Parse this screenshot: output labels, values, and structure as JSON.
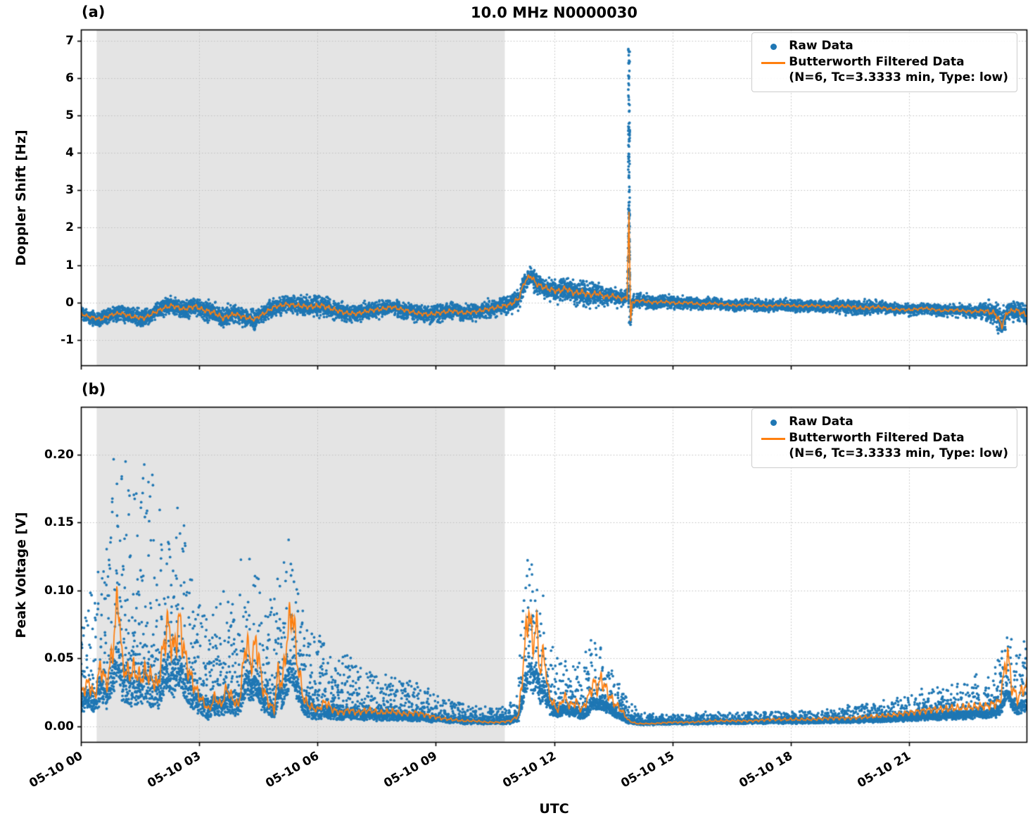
{
  "chart": {
    "title": "10.0 MHz N0000030",
    "xlabel": "UTC"
  },
  "panels": {
    "a": {
      "label": "(a)",
      "ylabel": "Doppler Shift [Hz]"
    },
    "b": {
      "label": "(b)",
      "ylabel": "Peak Voltage [V]"
    }
  },
  "legend": {
    "raw": "Raw Data",
    "filtered_line1": "Butterworth Filtered Data",
    "filtered_line2": "(N=6, Tc=3.3333 min, Type: low)"
  },
  "colors": {
    "raw": "#1f77b4",
    "filtered": "#ff7f0e",
    "shaded": "#e4e4e4",
    "grid": "#c0c0c0",
    "spine": "#000000"
  },
  "chart_data": [
    {
      "type": "scatter",
      "panel": "a",
      "title": "10.0 MHz N0000030",
      "ylabel": "Doppler Shift [Hz]",
      "xlabel": "UTC",
      "ylim": [
        -1.7,
        7.3
      ],
      "ytick_values": [
        -1,
        0,
        1,
        2,
        3,
        4,
        5,
        6,
        7
      ],
      "ytick_labels": [
        "-1",
        "0",
        "1",
        "2",
        "3",
        "4",
        "5",
        "6",
        "7"
      ],
      "x_hours_range": [
        0,
        24
      ],
      "xtick_hours": [
        0,
        3,
        6,
        9,
        12,
        15,
        18,
        21
      ],
      "xtick_labels": [
        "05-10 00",
        "05-10 03",
        "05-10 06",
        "05-10 09",
        "05-10 12",
        "05-10 15",
        "05-10 18",
        "05-10 21"
      ],
      "shaded_region_hours": [
        0.4,
        10.75
      ],
      "grid": "dotted",
      "legend_position": "upper right",
      "series": [
        {
          "name": "Raw Data",
          "type": "scatter"
        },
        {
          "name": "Butterworth Filtered Data (N=6, Tc=3.3333 min, Type: low)",
          "type": "line"
        }
      ],
      "n_raw_points": 9000,
      "filtered_baseline": [
        [
          0,
          -0.3
        ],
        [
          0.2,
          -0.38
        ],
        [
          0.5,
          -0.45
        ],
        [
          0.8,
          -0.32
        ],
        [
          1,
          -0.28
        ],
        [
          1.3,
          -0.38
        ],
        [
          1.6,
          -0.42
        ],
        [
          1.9,
          -0.25
        ],
        [
          2.1,
          -0.15
        ],
        [
          2.3,
          -0.08
        ],
        [
          2.6,
          -0.18
        ],
        [
          2.9,
          -0.1
        ],
        [
          3.1,
          -0.2
        ],
        [
          3.4,
          -0.28
        ],
        [
          3.6,
          -0.42
        ],
        [
          3.9,
          -0.3
        ],
        [
          4.1,
          -0.38
        ],
        [
          4.4,
          -0.45
        ],
        [
          4.6,
          -0.32
        ],
        [
          4.9,
          -0.12
        ],
        [
          5.2,
          -0.05
        ],
        [
          5.5,
          -0.08
        ],
        [
          5.8,
          -0.12
        ],
        [
          6.1,
          -0.08
        ],
        [
          6.4,
          -0.18
        ],
        [
          6.7,
          -0.28
        ],
        [
          7,
          -0.3
        ],
        [
          7.3,
          -0.22
        ],
        [
          7.6,
          -0.18
        ],
        [
          7.9,
          -0.12
        ],
        [
          8.2,
          -0.2
        ],
        [
          8.5,
          -0.28
        ],
        [
          8.8,
          -0.32
        ],
        [
          9.1,
          -0.28
        ],
        [
          9.4,
          -0.22
        ],
        [
          9.7,
          -0.28
        ],
        [
          10,
          -0.25
        ],
        [
          10.3,
          -0.18
        ],
        [
          10.6,
          -0.12
        ],
        [
          10.9,
          -0.05
        ],
        [
          11.1,
          0.1
        ],
        [
          11.25,
          0.55
        ],
        [
          11.4,
          0.72
        ],
        [
          11.55,
          0.5
        ],
        [
          11.7,
          0.42
        ],
        [
          11.9,
          0.35
        ],
        [
          12.1,
          0.3
        ],
        [
          12.3,
          0.38
        ],
        [
          12.5,
          0.25
        ],
        [
          12.7,
          0.28
        ],
        [
          12.9,
          0.2
        ],
        [
          13.1,
          0.25
        ],
        [
          13.3,
          0.15
        ],
        [
          13.5,
          0.18
        ],
        [
          13.7,
          0.1
        ],
        [
          13.85,
          0.12
        ],
        [
          13.9,
          2.45
        ],
        [
          13.94,
          -0.55
        ],
        [
          13.98,
          0.02
        ],
        [
          14.2,
          0.05
        ],
        [
          14.5,
          0
        ],
        [
          14.8,
          0.02
        ],
        [
          15.1,
          -0.02
        ],
        [
          15.4,
          0
        ],
        [
          15.7,
          -0.05
        ],
        [
          16,
          -0.02
        ],
        [
          16.3,
          -0.05
        ],
        [
          16.6,
          -0.08
        ],
        [
          17,
          -0.05
        ],
        [
          17.4,
          -0.1
        ],
        [
          17.8,
          -0.06
        ],
        [
          18.2,
          -0.1
        ],
        [
          18.6,
          -0.08
        ],
        [
          19,
          -0.12
        ],
        [
          19.4,
          -0.1
        ],
        [
          19.8,
          -0.15
        ],
        [
          20.2,
          -0.12
        ],
        [
          20.6,
          -0.18
        ],
        [
          21,
          -0.2
        ],
        [
          21.4,
          -0.15
        ],
        [
          21.8,
          -0.22
        ],
        [
          22.2,
          -0.2
        ],
        [
          22.6,
          -0.25
        ],
        [
          22.9,
          -0.22
        ],
        [
          23.2,
          -0.3
        ],
        [
          23.35,
          -0.62
        ],
        [
          23.5,
          -0.25
        ],
        [
          23.7,
          -0.2
        ],
        [
          24,
          -0.35
        ]
      ],
      "raw_noise_halfwidth": [
        [
          0,
          0.22
        ],
        [
          1,
          0.25
        ],
        [
          2,
          0.28
        ],
        [
          3,
          0.3
        ],
        [
          3.5,
          0.35
        ],
        [
          4,
          0.3
        ],
        [
          5,
          0.25
        ],
        [
          5.5,
          0.3
        ],
        [
          6,
          0.35
        ],
        [
          6.5,
          0.3
        ],
        [
          7,
          0.28
        ],
        [
          8,
          0.25
        ],
        [
          9,
          0.28
        ],
        [
          10,
          0.25
        ],
        [
          10.8,
          0.28
        ],
        [
          11.3,
          0.35
        ],
        [
          12,
          0.35
        ],
        [
          12.8,
          0.4
        ],
        [
          13.5,
          0.3
        ],
        [
          14,
          0.22
        ],
        [
          15,
          0.2
        ],
        [
          16,
          0.18
        ],
        [
          17,
          0.18
        ],
        [
          18,
          0.18
        ],
        [
          19,
          0.2
        ],
        [
          19.8,
          0.25
        ],
        [
          20.5,
          0.18
        ],
        [
          21,
          0.18
        ],
        [
          22,
          0.18
        ],
        [
          22.8,
          0.22
        ],
        [
          23.35,
          0.5
        ],
        [
          23.6,
          0.3
        ],
        [
          24,
          0.35
        ]
      ],
      "raw_spike": {
        "t_center": 13.9,
        "t_halfwidth": 0.02,
        "v_min": -0.55,
        "v_max": 6.8,
        "n_points": 130
      }
    },
    {
      "type": "scatter",
      "panel": "b",
      "ylabel": "Peak Voltage [V]",
      "xlabel": "UTC",
      "ylim": [
        -0.012,
        0.235
      ],
      "ytick_values": [
        0,
        0.05,
        0.1,
        0.15,
        0.2
      ],
      "ytick_labels": [
        "0.00",
        "0.05",
        "0.10",
        "0.15",
        "0.20"
      ],
      "x_hours_range": [
        0,
        24
      ],
      "xtick_hours": [
        0,
        3,
        6,
        9,
        12,
        15,
        18,
        21
      ],
      "xtick_labels": [
        "05-10 00",
        "05-10 03",
        "05-10 06",
        "05-10 09",
        "05-10 12",
        "05-10 15",
        "05-10 18",
        "05-10 21"
      ],
      "shaded_region_hours": [
        0.4,
        10.75
      ],
      "grid": "dotted",
      "legend_position": "upper right",
      "series": [
        {
          "name": "Raw Data",
          "type": "scatter"
        },
        {
          "name": "Butterworth Filtered Data (N=6, Tc=3.3333 min, Type: low)",
          "type": "line"
        }
      ],
      "n_raw_points": 9000,
      "raw_max_clip": 0.225,
      "filtered_baseline": [
        [
          0,
          0.025
        ],
        [
          0.2,
          0.032
        ],
        [
          0.35,
          0.022
        ],
        [
          0.5,
          0.045
        ],
        [
          0.65,
          0.03
        ],
        [
          0.8,
          0.055
        ],
        [
          0.95,
          0.098
        ],
        [
          1.05,
          0.045
        ],
        [
          1.2,
          0.038
        ],
        [
          1.35,
          0.042
        ],
        [
          1.5,
          0.035
        ],
        [
          1.65,
          0.04
        ],
        [
          1.8,
          0.035
        ],
        [
          1.95,
          0.03
        ],
        [
          2.1,
          0.06
        ],
        [
          2.2,
          0.075
        ],
        [
          2.35,
          0.055
        ],
        [
          2.5,
          0.078
        ],
        [
          2.65,
          0.05
        ],
        [
          2.8,
          0.035
        ],
        [
          2.95,
          0.025
        ],
        [
          3.1,
          0.018
        ],
        [
          3.25,
          0.012
        ],
        [
          3.4,
          0.022
        ],
        [
          3.55,
          0.015
        ],
        [
          3.7,
          0.028
        ],
        [
          3.85,
          0.02
        ],
        [
          4,
          0.015
        ],
        [
          4.1,
          0.04
        ],
        [
          4.2,
          0.065
        ],
        [
          4.3,
          0.045
        ],
        [
          4.45,
          0.063
        ],
        [
          4.6,
          0.03
        ],
        [
          4.75,
          0.018
        ],
        [
          4.9,
          0.012
        ],
        [
          5,
          0.04
        ],
        [
          5.1,
          0.03
        ],
        [
          5.2,
          0.058
        ],
        [
          5.35,
          0.088
        ],
        [
          5.5,
          0.045
        ],
        [
          5.65,
          0.02
        ],
        [
          5.8,
          0.015
        ],
        [
          6,
          0.012
        ],
        [
          6.2,
          0.018
        ],
        [
          6.4,
          0.012
        ],
        [
          6.6,
          0.01
        ],
        [
          6.8,
          0.012
        ],
        [
          7,
          0.01
        ],
        [
          7.3,
          0.012
        ],
        [
          7.6,
          0.01
        ],
        [
          7.9,
          0.011
        ],
        [
          8.2,
          0.009
        ],
        [
          8.5,
          0.01
        ],
        [
          8.8,
          0.008
        ],
        [
          9.1,
          0.006
        ],
        [
          9.4,
          0.005
        ],
        [
          9.7,
          0.004
        ],
        [
          10,
          0.004
        ],
        [
          10.3,
          0.003
        ],
        [
          10.6,
          0.003
        ],
        [
          10.9,
          0.004
        ],
        [
          11.1,
          0.008
        ],
        [
          11.25,
          0.055
        ],
        [
          11.35,
          0.088
        ],
        [
          11.45,
          0.06
        ],
        [
          11.55,
          0.075
        ],
        [
          11.65,
          0.04
        ],
        [
          11.75,
          0.055
        ],
        [
          11.85,
          0.025
        ],
        [
          11.95,
          0.018
        ],
        [
          12.1,
          0.012
        ],
        [
          12.25,
          0.022
        ],
        [
          12.4,
          0.015
        ],
        [
          12.55,
          0.018
        ],
        [
          12.7,
          0.012
        ],
        [
          12.85,
          0.02
        ],
        [
          13,
          0.032
        ],
        [
          13.1,
          0.028
        ],
        [
          13.2,
          0.035
        ],
        [
          13.35,
          0.025
        ],
        [
          13.5,
          0.018
        ],
        [
          13.7,
          0.012
        ],
        [
          13.9,
          0.004
        ],
        [
          14.1,
          0.002
        ],
        [
          14.5,
          0.002
        ],
        [
          15,
          0.003
        ],
        [
          15.5,
          0.003
        ],
        [
          16,
          0.004
        ],
        [
          16.5,
          0.004
        ],
        [
          17,
          0.004
        ],
        [
          17.5,
          0.005
        ],
        [
          18,
          0.005
        ],
        [
          18.5,
          0.005
        ],
        [
          19,
          0.006
        ],
        [
          19.5,
          0.006
        ],
        [
          20,
          0.007
        ],
        [
          20.5,
          0.008
        ],
        [
          21,
          0.01
        ],
        [
          21.5,
          0.012
        ],
        [
          22,
          0.013
        ],
        [
          22.5,
          0.014
        ],
        [
          23,
          0.015
        ],
        [
          23.3,
          0.018
        ],
        [
          23.5,
          0.055
        ],
        [
          23.6,
          0.03
        ],
        [
          23.75,
          0.02
        ],
        [
          23.9,
          0.028
        ],
        [
          24,
          0.03
        ]
      ],
      "raw_noise_halfwidth": [
        [
          0,
          0.05
        ],
        [
          0.5,
          0.06
        ],
        [
          0.95,
          0.13
        ],
        [
          1.3,
          0.09
        ],
        [
          1.7,
          0.12
        ],
        [
          2.1,
          0.09
        ],
        [
          2.5,
          0.1
        ],
        [
          2.9,
          0.06
        ],
        [
          3.3,
          0.05
        ],
        [
          3.7,
          0.06
        ],
        [
          4.2,
          0.07
        ],
        [
          4.6,
          0.05
        ],
        [
          5,
          0.06
        ],
        [
          5.35,
          0.07
        ],
        [
          5.8,
          0.04
        ],
        [
          6.2,
          0.035
        ],
        [
          6.6,
          0.03
        ],
        [
          7,
          0.025
        ],
        [
          7.5,
          0.022
        ],
        [
          8,
          0.02
        ],
        [
          8.5,
          0.018
        ],
        [
          9,
          0.012
        ],
        [
          9.5,
          0.01
        ],
        [
          10,
          0.008
        ],
        [
          10.5,
          0.006
        ],
        [
          11,
          0.01
        ],
        [
          11.35,
          0.08
        ],
        [
          11.6,
          0.06
        ],
        [
          11.9,
          0.04
        ],
        [
          12.2,
          0.025
        ],
        [
          12.6,
          0.025
        ],
        [
          13,
          0.035
        ],
        [
          13.4,
          0.025
        ],
        [
          13.8,
          0.012
        ],
        [
          14.2,
          0.005
        ],
        [
          15,
          0.004
        ],
        [
          16,
          0.005
        ],
        [
          17,
          0.005
        ],
        [
          18,
          0.005
        ],
        [
          19,
          0.006
        ],
        [
          20,
          0.008
        ],
        [
          21,
          0.012
        ],
        [
          21.5,
          0.015
        ],
        [
          22,
          0.016
        ],
        [
          22.5,
          0.018
        ],
        [
          23,
          0.02
        ],
        [
          23.5,
          0.035
        ],
        [
          23.8,
          0.03
        ],
        [
          24,
          0.035
        ]
      ]
    }
  ]
}
